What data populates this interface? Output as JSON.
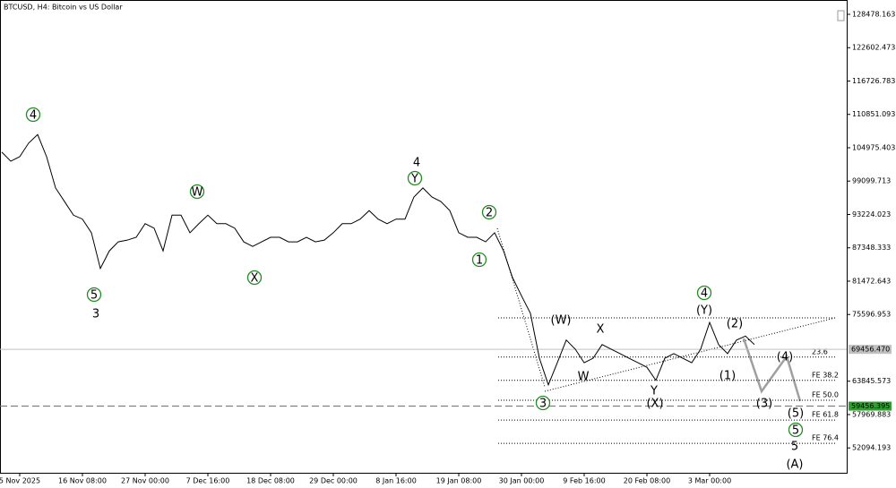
{
  "chart_data": {
    "type": "line",
    "title": "BTCUSD, H4:  Bitcoin vs US Dollar",
    "color": "#000000",
    "categories": [
      null,
      null,
      "5 Nov 2025",
      null,
      null,
      null,
      null,
      null,
      null,
      "16 Nov 08:00",
      null,
      null,
      null,
      null,
      null,
      null,
      "27 Nov 00:00",
      null,
      null,
      null,
      null,
      null,
      null,
      "7 Dec 16:00",
      null,
      null,
      null,
      null,
      null,
      null,
      "18 Dec 08:00",
      null,
      null,
      null,
      null,
      null,
      null,
      "29 Dec 00:00",
      null,
      null,
      null,
      null,
      null,
      null,
      "8 Jan 16:00",
      null,
      null,
      null,
      null,
      null,
      null,
      "19 Jan 08:00",
      null,
      null,
      null,
      null,
      null,
      null,
      "30 Jan 00:00",
      null,
      null,
      null,
      null,
      null,
      null,
      "9 Feb 16:00",
      null,
      null,
      null,
      null,
      null,
      null,
      "20 Feb 08:00",
      null,
      null,
      null,
      null,
      null,
      null,
      "3 Mar 00:00",
      null,
      null,
      null,
      null,
      null
    ],
    "values": [
      104200,
      102600,
      103400,
      105800,
      107300,
      103400,
      97900,
      95500,
      93100,
      92400,
      90000,
      83700,
      86800,
      88400,
      88700,
      89200,
      91600,
      90800,
      86800,
      93100,
      93100,
      90000,
      91600,
      93100,
      91600,
      91600,
      90800,
      88400,
      87600,
      88400,
      89200,
      89200,
      88400,
      88400,
      89200,
      88400,
      88700,
      90000,
      91600,
      91600,
      92400,
      93900,
      92400,
      91600,
      92400,
      92400,
      96300,
      97900,
      96300,
      95500,
      93900,
      90000,
      89200,
      89200,
      88400,
      90000,
      86800,
      82100,
      78900,
      75800,
      67900,
      63200,
      67100,
      71100,
      69500,
      67100,
      67900,
      70300,
      69500,
      68700,
      67900,
      67100,
      66300,
      64000,
      67900,
      68700,
      67900,
      67100,
      69500,
      74200,
      70300,
      68700,
      71100,
      71800,
      70300
    ],
    "ylim": [
      47714,
      131002
    ],
    "yticks": [
      128478.163,
      122602.473,
      116726.783,
      110851.093,
      104975.403,
      99099.713,
      93224.023,
      87348.333,
      81472.643,
      75596.953,
      63845.573,
      57969.883,
      52094.193
    ],
    "price_lines": [
      {
        "value": 69456.47,
        "label": "69456.470",
        "color": "#c0c0c0"
      },
      {
        "value": 59456.395,
        "color": "#2e9e2e",
        "dashed": true
      }
    ],
    "levels": [
      {
        "value": 75000
      },
      {
        "value": 68100,
        "label": "23.6"
      },
      {
        "value": 64000,
        "label": "FE 38.2"
      },
      {
        "value": 60500,
        "label": "FE 50.0"
      },
      {
        "value": 57000,
        "label": "FE 61.8"
      },
      {
        "value": 52900,
        "label": "FE 76.4"
      }
    ],
    "annotations": [
      {
        "text": "4",
        "color": "#1e8c1e",
        "circled": true
      },
      {
        "text": "5",
        "color": "#1e8c1e",
        "circled": true
      },
      {
        "text": "3",
        "color": "#8b0000"
      },
      {
        "text": "W",
        "color": "#1e8c1e",
        "circled": true
      },
      {
        "text": "X",
        "color": "#1e8c1e",
        "circled": true
      },
      {
        "text": "4",
        "color": "#8b0000"
      },
      {
        "text": "Y",
        "color": "#1e8c1e",
        "circled": true
      },
      {
        "text": "2",
        "color": "#1e8c1e",
        "circled": true
      },
      {
        "text": "1",
        "color": "#1e8c1e",
        "circled": true
      },
      {
        "text": "3",
        "color": "#1e8c1e",
        "circled": true
      },
      {
        "text": "(W)",
        "color": "#1a237e"
      },
      {
        "text": "X",
        "color": "#b22222"
      },
      {
        "text": "W",
        "color": "#b22222"
      },
      {
        "text": "Y",
        "color": "#b22222"
      },
      {
        "text": "(X)",
        "color": "#1a237e"
      },
      {
        "text": "(Y)",
        "color": "#1a237e"
      },
      {
        "text": "4",
        "color": "#1e8c1e",
        "circled": true
      },
      {
        "text": "(2)",
        "color": "#1a237e"
      },
      {
        "text": "(1)",
        "color": "#1a237e"
      },
      {
        "text": "(4)",
        "color": "#1a237e"
      },
      {
        "text": "(3)",
        "color": "#1a237e"
      },
      {
        "text": "(5)",
        "color": "#1a237e"
      },
      {
        "text": "5",
        "color": "#1e8c1e",
        "circled": true
      },
      {
        "text": "5",
        "color": "#8b0000"
      },
      {
        "text": "(A)",
        "color": "#1a237e",
        "big": true
      }
    ]
  }
}
